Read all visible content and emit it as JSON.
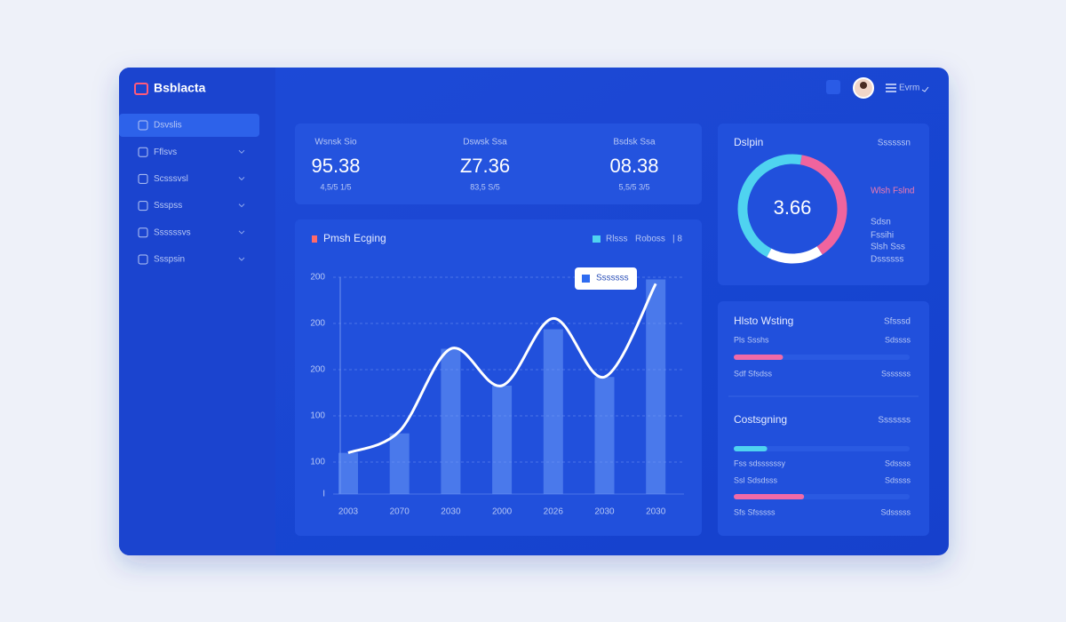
{
  "header": {
    "brand": "Bsblacta",
    "user_menu": "Evrm"
  },
  "sidebar": {
    "items": [
      "Dsvslis",
      "Fflsvs",
      "Scsssvsl",
      "Ssspss",
      "Ssssssvs",
      "Ssspsin"
    ]
  },
  "stats": [
    {
      "label": "Wsnsk Sio",
      "value": "95.38",
      "sub": "4,5/5 1/5"
    },
    {
      "label": "Dswsk Ssa",
      "value": "Z7.36",
      "sub": "83,5 S/5"
    },
    {
      "label": "Bsdsk Ssa",
      "value": "08.38",
      "sub": "5,5/5 3/5"
    }
  ],
  "chart_data": {
    "type": "bar",
    "title": "Pmsh Ecging",
    "tooltip": "Sssssss",
    "legend_extra": "| 8",
    "y_labels": [
      "200",
      "200",
      "200",
      "100",
      "100",
      "I"
    ],
    "categories": [
      "2003",
      "2070",
      "2030",
      "2000",
      "2026",
      "2030",
      "2030"
    ],
    "ylim": [
      0,
      100
    ],
    "grid": true,
    "series": [
      {
        "name": "Rlsss",
        "kind": "bar",
        "color": "#6d9bf8",
        "values": [
          19,
          28,
          67,
          50,
          76,
          54,
          99
        ]
      },
      {
        "name": "Roboss",
        "kind": "line",
        "color": "#ffffff",
        "values": [
          19,
          29,
          67,
          50,
          81,
          54,
          97
        ]
      }
    ]
  },
  "donut": {
    "title": "Dslpin",
    "action": "Ssssssn",
    "center": "3.66",
    "segments": [
      {
        "color": "#f0649e",
        "value": 38
      },
      {
        "color": "#ffffff",
        "value": 17
      },
      {
        "color": "#4fd3f0",
        "value": 45
      }
    ],
    "legend": [
      "Wlsh Fslnd",
      "Sdsn",
      "Fssihi",
      "Slsh Sss",
      "Dssssss"
    ]
  },
  "progress": [
    {
      "title": "Hlsto Wsting",
      "action": "Sfsssd",
      "rows": [
        {
          "label": "Pls Ssshs",
          "right": "Sdssss"
        },
        {
          "value": 28,
          "color": "#f06aa8"
        },
        {
          "label": "Sdf Sfsdss",
          "right": "Sssssss"
        }
      ]
    },
    {
      "title": "Costsgning",
      "action": "Sssssss",
      "rows": [
        {
          "value": 19,
          "color": "#4fd3f0"
        },
        {
          "label": "Fss sdssssssy",
          "right": "Sdssss"
        },
        {
          "label": "Ssl Sdsdsss",
          "right": "Sdssss"
        },
        {
          "value": 40,
          "color": "#f06aa8"
        },
        {
          "label": "Sfs Sfsssss",
          "right": "Sdsssss"
        }
      ]
    }
  ]
}
